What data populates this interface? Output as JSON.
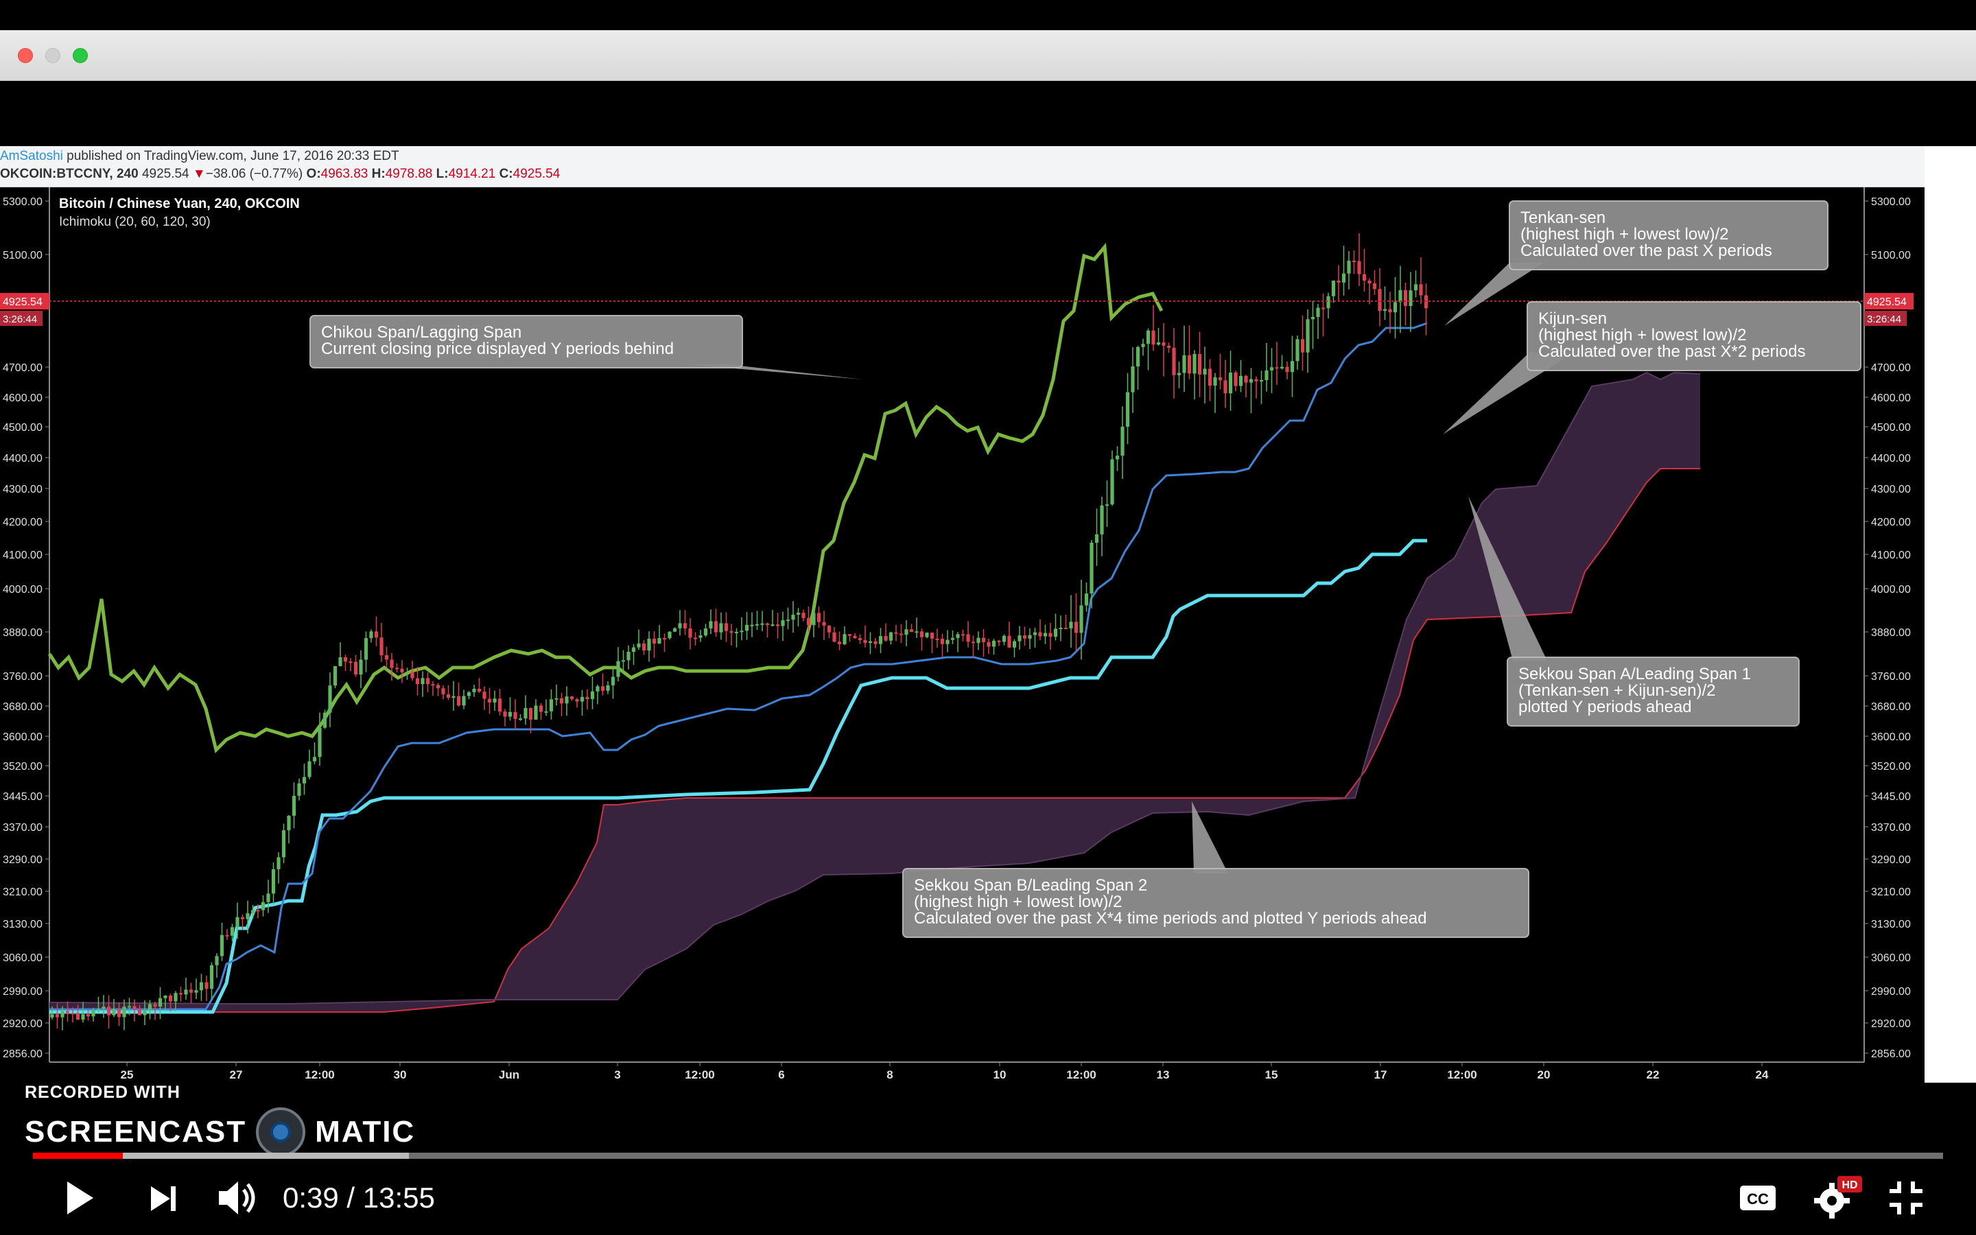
{
  "header": {
    "author": "AmSatoshi",
    "published": " published on TradingView.com, June 17, 2016 20:33 EDT",
    "symbol": "OKCOIN:BTCCNY, 240",
    "last": "4925.54",
    "change_arrow": "▼",
    "change": "−38.06 (−0.77%)",
    "o_label": "O:",
    "o": "4963.83",
    "h_label": "H:",
    "h": "4978.88",
    "l_label": "L:",
    "l": "4914.21",
    "c_label": "C:",
    "c": "4925.54"
  },
  "chart": {
    "title": "Bitcoin / Chinese Yuan, 240, OKCOIN",
    "indicator": "Ichimoku (20, 60, 120, 30)",
    "price_tag": "4925.54",
    "timer_tag": "3:26:44",
    "y_ticks": [
      "5300.00",
      "5100.00",
      "4700.00",
      "4600.00",
      "4500.00",
      "4400.00",
      "4300.00",
      "4200.00",
      "4100.00",
      "4000.00",
      "3880.00",
      "3760.00",
      "3680.00",
      "3600.00",
      "3520.00",
      "3445.00",
      "3370.00",
      "3290.00",
      "3210.00",
      "3130.00",
      "3060.00",
      "2990.00",
      "2920.00",
      "2856.00"
    ],
    "x_ticks": [
      "25",
      "27",
      "12:00",
      "30",
      "Jun",
      "3",
      "12:00",
      "6",
      "8",
      "10",
      "12:00",
      "13",
      "15",
      "17",
      "12:00",
      "20",
      "22",
      "24"
    ],
    "colors": {
      "chikou": "#7cb83c",
      "tenkan": "#3f83d8",
      "kijun": "#5fe0f0",
      "span_b": "#d03040",
      "cloud": "#3a2540",
      "candle_up": "#5cb85c",
      "candle_down": "#e04050"
    }
  },
  "annotations": {
    "tenkan": [
      "Tenkan-sen",
      "(highest high + lowest low)/2",
      "Calculated over the past X periods"
    ],
    "kijun": [
      "Kijun-sen",
      "(highest high + lowest low)/2",
      "Calculated over the past X*2 periods"
    ],
    "chikou": [
      "Chikou Span/Lagging Span",
      "Current closing price displayed Y periods behind"
    ],
    "span_a": [
      "Sekkou Span A/Leading Span 1",
      "(Tenkan-sen + Kijun-sen)/2",
      "plotted Y periods ahead"
    ],
    "span_b": [
      "Sekkou Span B/Leading Span 2",
      "(highest high + lowest low)/2",
      "Calculated over the past X*4 time periods and plotted Y periods ahead"
    ]
  },
  "player": {
    "recorded_with": "RECORDED WITH",
    "brand_left": "SCREENCAST",
    "brand_right": "MATIC",
    "time_current": "0:39",
    "time_separator": " / ",
    "time_total": "13:55",
    "played_fraction": 0.047,
    "buffered_fraction": 0.197,
    "hd_badge": "HD",
    "cc_label": "CC",
    "icons": [
      "play-icon",
      "next-icon",
      "volume-icon",
      "captions-icon",
      "settings-icon",
      "exit-fullscreen-icon"
    ]
  }
}
